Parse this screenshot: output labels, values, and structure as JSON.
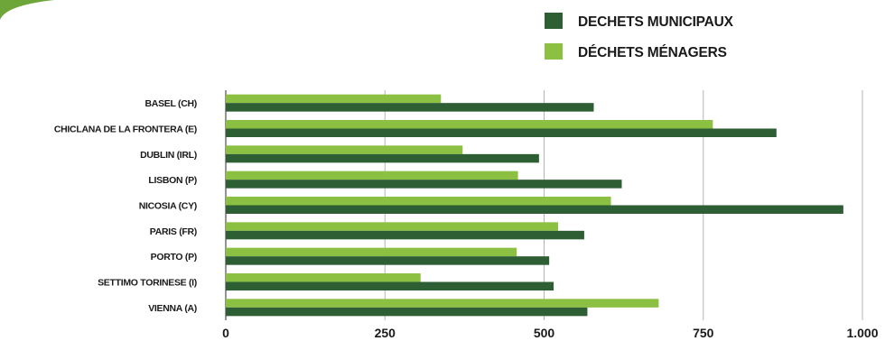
{
  "chart_data": {
    "type": "bar",
    "orientation": "horizontal",
    "categories": [
      "BASEL (CH)",
      "CHICLANA DE LA FRONTERA (E)",
      "DUBLIN (IRL)",
      "LISBON (P)",
      "NICOSIA (CY)",
      "PARIS (FR)",
      "PORTO (P)",
      "SETTIMO TORINESE (I)",
      "VIENNA (A)"
    ],
    "series": [
      {
        "name": "DECHETS MUNICIPAUX",
        "color": "#2d5e34",
        "values": [
          578,
          865,
          492,
          622,
          970,
          563,
          508,
          515,
          568
        ]
      },
      {
        "name": "DÉCHETS MÉNAGERS",
        "color": "#8cc043",
        "values": [
          338,
          765,
          372,
          459,
          605,
          522,
          457,
          306,
          680
        ]
      }
    ],
    "x_ticks": [
      "0",
      "250",
      "500",
      "750",
      "1.000"
    ],
    "xlim": [
      0,
      1000
    ],
    "grid": true,
    "legend_position": "top-right",
    "title": "",
    "xlabel": "",
    "ylabel": ""
  }
}
